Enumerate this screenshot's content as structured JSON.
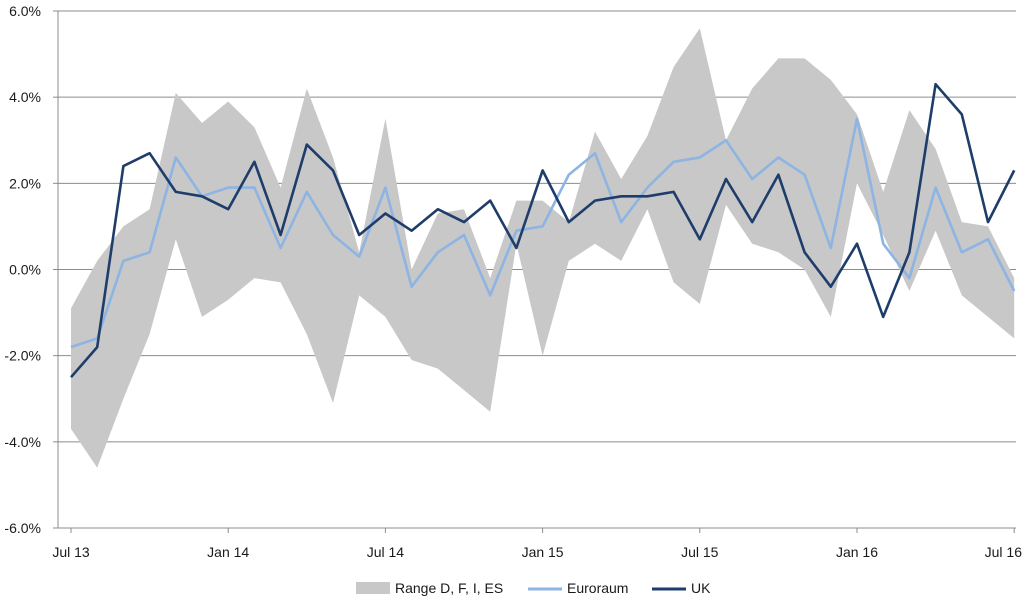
{
  "chart_data": {
    "type": "line",
    "title": "",
    "xlabel": "",
    "ylabel": "",
    "ylim": [
      -0.06,
      0.06
    ],
    "y_ticks": [
      -0.06,
      -0.04,
      -0.02,
      0.0,
      0.02,
      0.04,
      0.06
    ],
    "y_tick_labels": [
      "-6.0%",
      "-4.0%",
      "-2.0%",
      "0.0%",
      "2.0%",
      "4.0%",
      "6.0%"
    ],
    "x_tick_labels": [
      "Jul 13",
      "Jan 14",
      "Jul 14",
      "Jan 15",
      "Jul 15",
      "Jan 16",
      "Jul 16"
    ],
    "x_tick_indices": [
      0,
      6,
      12,
      18,
      24,
      30,
      36
    ],
    "grid": "horizontal",
    "legend_position": "bottom",
    "x": [
      "Jul 13",
      "Aug 13",
      "Sep 13",
      "Oct 13",
      "Nov 13",
      "Dec 13",
      "Jan 14",
      "Feb 14",
      "Mar 14",
      "Apr 14",
      "May 14",
      "Jun 14",
      "Jul 14",
      "Aug 14",
      "Sep 14",
      "Oct 14",
      "Nov 14",
      "Dec 14",
      "Jan 15",
      "Feb 15",
      "Mar 15",
      "Apr 15",
      "May 15",
      "Jun 15",
      "Jul 15",
      "Aug 15",
      "Sep 15",
      "Oct 15",
      "Nov 15",
      "Dec 15",
      "Jan 16",
      "Feb 16",
      "Mar 16",
      "Apr 16",
      "May 16",
      "Jun 16",
      "Jul 16"
    ],
    "range": {
      "name": "Range D, F, I, ES",
      "color": "#c8c8c8",
      "upper": [
        -0.009,
        0.002,
        0.01,
        0.014,
        0.041,
        0.034,
        0.039,
        0.033,
        0.019,
        0.042,
        0.026,
        0.004,
        0.035,
        0.0,
        0.013,
        0.014,
        -0.002,
        0.016,
        0.016,
        0.011,
        0.032,
        0.021,
        0.031,
        0.047,
        0.056,
        0.03,
        0.042,
        0.049,
        0.049,
        0.044,
        0.036,
        0.018,
        0.037,
        0.028,
        0.011,
        0.01,
        -0.002
      ],
      "lower": [
        -0.037,
        -0.046,
        -0.03,
        -0.015,
        0.007,
        -0.011,
        -0.007,
        -0.002,
        -0.003,
        -0.015,
        -0.031,
        -0.006,
        -0.011,
        -0.021,
        -0.023,
        -0.028,
        -0.033,
        0.006,
        -0.02,
        0.002,
        0.006,
        0.002,
        0.014,
        -0.003,
        -0.008,
        0.015,
        0.006,
        0.004,
        0.0,
        -0.011,
        0.02,
        0.008,
        -0.005,
        0.009,
        -0.006,
        -0.011,
        -0.016
      ]
    },
    "series": [
      {
        "name": "Euroraum",
        "color": "#8db4e2",
        "values": [
          -0.018,
          -0.016,
          0.002,
          0.004,
          0.026,
          0.017,
          0.019,
          0.019,
          0.005,
          0.018,
          0.008,
          0.003,
          0.019,
          -0.004,
          0.004,
          0.008,
          -0.006,
          0.009,
          0.01,
          0.022,
          0.027,
          0.011,
          0.019,
          0.025,
          0.026,
          0.03,
          0.021,
          0.026,
          0.022,
          0.005,
          0.035,
          0.006,
          -0.002,
          0.019,
          0.004,
          0.007,
          -0.005
        ]
      },
      {
        "name": "UK",
        "color": "#1f3d6b",
        "values": [
          -0.025,
          -0.018,
          0.024,
          0.027,
          0.018,
          0.017,
          0.014,
          0.025,
          0.008,
          0.029,
          0.023,
          0.008,
          0.013,
          0.009,
          0.014,
          0.011,
          0.016,
          0.005,
          0.023,
          0.011,
          0.016,
          0.017,
          0.017,
          0.018,
          0.007,
          0.021,
          0.011,
          0.022,
          0.004,
          -0.004,
          0.006,
          -0.011,
          0.004,
          0.043,
          0.036,
          0.011,
          0.023
        ]
      }
    ]
  }
}
